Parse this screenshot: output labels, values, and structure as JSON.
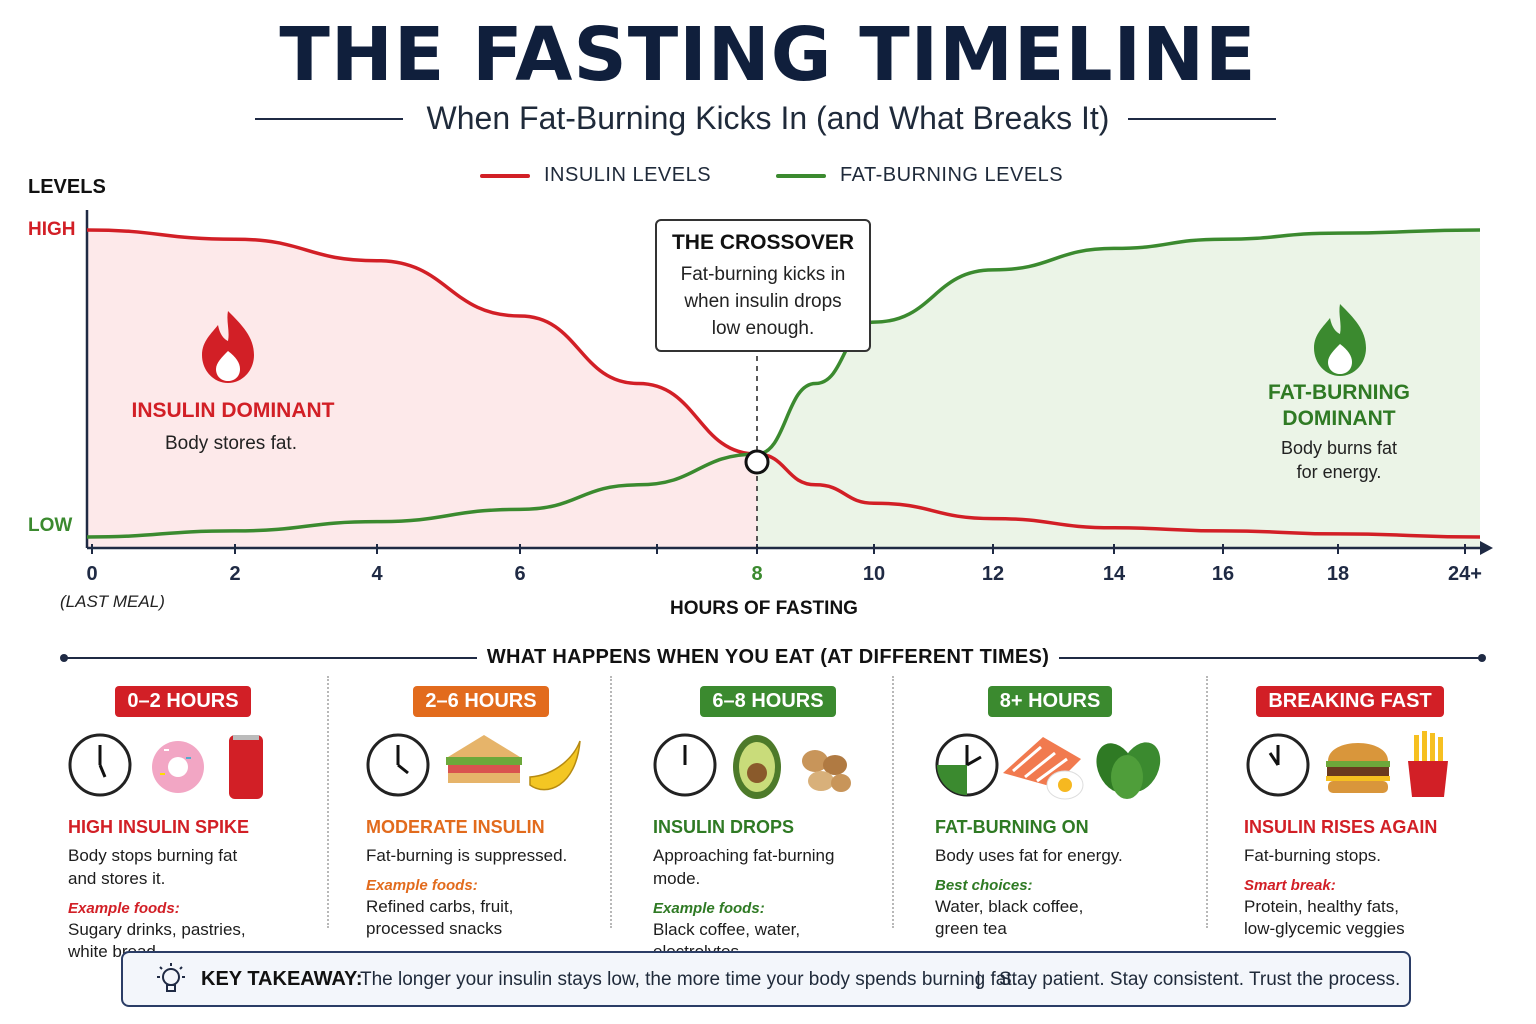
{
  "title": "THE FASTING TIMELINE",
  "subtitle": "When Fat-Burning Kicks In (and What Breaks It)",
  "colors": {
    "insulin": "#d21f26",
    "fat_burning": "#3b8a2f",
    "navy": "#1f2a44",
    "orange": "#e26b1d"
  },
  "chart_data": {
    "type": "line",
    "title": "",
    "ylabel": "LEVELS",
    "xlabel": "HOURS OF FASTING",
    "y_tick_labels": [
      "HIGH",
      "LOW"
    ],
    "x_ticks": [
      "0",
      "2",
      "4",
      "6",
      "8",
      "10",
      "12",
      "14",
      "16",
      "18",
      "24+"
    ],
    "x_tick_note": "(LAST MEAL)",
    "legend": [
      "INSULIN LEVELS",
      "FAT-BURNING LEVELS"
    ],
    "x": [
      0,
      2,
      4,
      6,
      7,
      8,
      9,
      10,
      12,
      14,
      16,
      18,
      24
    ],
    "series": [
      {
        "name": "INSULIN LEVELS",
        "color": "#d21f26",
        "values": [
          1.0,
          0.97,
          0.9,
          0.72,
          0.5,
          0.27,
          0.17,
          0.11,
          0.06,
          0.03,
          0.02,
          0.01,
          0.0
        ]
      },
      {
        "name": "FAT-BURNING LEVELS",
        "color": "#3b8a2f",
        "values": [
          0.0,
          0.02,
          0.05,
          0.09,
          0.17,
          0.27,
          0.5,
          0.7,
          0.87,
          0.94,
          0.97,
          0.99,
          1.0
        ]
      }
    ],
    "crossover": {
      "x": 8,
      "title": "THE CROSSOVER",
      "text": "Fat-burning kicks in when insulin drops low enough."
    },
    "zones": [
      {
        "title": "INSULIN DOMINANT",
        "text": "Body stores fat."
      },
      {
        "title_line1": "FAT-BURNING",
        "title_line2": "DOMINANT",
        "text_line1": "Body burns fat",
        "text_line2": "for energy."
      }
    ]
  },
  "section_title": "WHAT HAPPENS WHEN YOU EAT (AT DIFFERENT TIMES)",
  "columns": [
    {
      "badge": "0–2 HOURS",
      "color": "#d21f26",
      "heading": "HIGH INSULIN SPIKE",
      "desc_line1": "Body stops burning fat",
      "desc_line2": "and stores it.",
      "sub": "Example foods:",
      "foods_line1": "Sugary drinks, pastries,",
      "foods_line2": "white bread",
      "icons": [
        "clock-icon",
        "donut-icon",
        "soda-can-icon"
      ]
    },
    {
      "badge": "2–6 HOURS",
      "color": "#e26b1d",
      "heading": "MODERATE INSULIN",
      "desc_line1": "Fat-burning is suppressed.",
      "desc_line2": "",
      "sub": "Example foods:",
      "foods_line1": "Refined carbs, fruit,",
      "foods_line2": "processed snacks",
      "icons": [
        "clock-icon",
        "sandwich-icon",
        "banana-icon"
      ]
    },
    {
      "badge": "6–8 HOURS",
      "color": "#3b8a2f",
      "heading": "INSULIN DROPS",
      "desc_line1": "Approaching fat-burning",
      "desc_line2": "mode.",
      "sub": "Example foods:",
      "foods_line1": "Black coffee, water,",
      "foods_line2": "electrolytes",
      "icons": [
        "clock-icon",
        "avocado-icon",
        "nuts-icon"
      ]
    },
    {
      "badge": "8+ HOURS",
      "color": "#3b8a2f",
      "heading": "FAT-BURNING ON",
      "desc_line1": "Body uses fat for energy.",
      "desc_line2": "",
      "sub": "Best choices:",
      "foods_line1": "Water, black coffee,",
      "foods_line2": "green tea",
      "icons": [
        "clock-icon",
        "salmon-egg-icon",
        "spinach-icon"
      ]
    },
    {
      "badge": "BREAKING FAST",
      "color": "#d21f26",
      "heading": "INSULIN RISES AGAIN",
      "desc_line1": "Fat-burning stops.",
      "desc_line2": "",
      "sub": "Smart break:",
      "foods_line1": "Protein, healthy fats,",
      "foods_line2": "low-glycemic veggies",
      "icons": [
        "clock-icon",
        "burger-icon",
        "fries-icon"
      ]
    }
  ],
  "takeaway": {
    "label": "KEY TAKEAWAY:",
    "text": "The longer your insulin stays low, the more time your body spends burning fat.",
    "separator": "|",
    "text2": "Stay patient. Stay consistent. Trust the process.",
    "icon": "lightbulb-icon"
  }
}
